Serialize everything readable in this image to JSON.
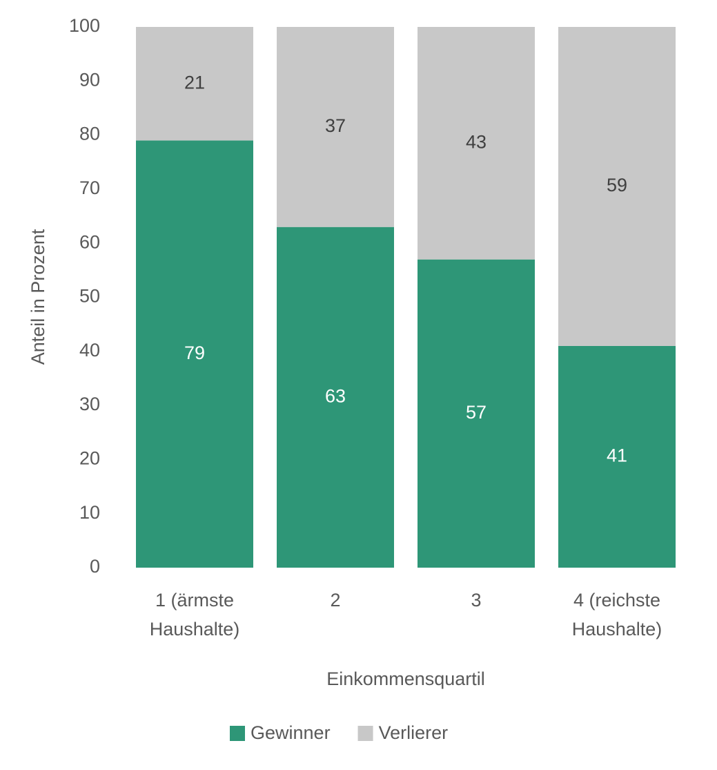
{
  "chart_data": {
    "type": "stacked_bar",
    "x_label": "Einkommensquartil",
    "y_label": "Anteil in Prozent",
    "categories": [
      "1 (ärmste Haushalte)",
      "2",
      "3",
      "4 (reichste Haushalte)"
    ],
    "series": [
      {
        "name": "Gewinner",
        "color": "#2e9677",
        "values": [
          79,
          63,
          57,
          41
        ]
      },
      {
        "name": "Verlierer",
        "color": "#c8c8c8",
        "values": [
          21,
          37,
          43,
          59
        ]
      }
    ],
    "ylim": [
      0,
      100
    ],
    "yticks": [
      0,
      10,
      20,
      30,
      40,
      50,
      60,
      70,
      80,
      90,
      100
    ],
    "grid": false,
    "legend": "bottom"
  }
}
